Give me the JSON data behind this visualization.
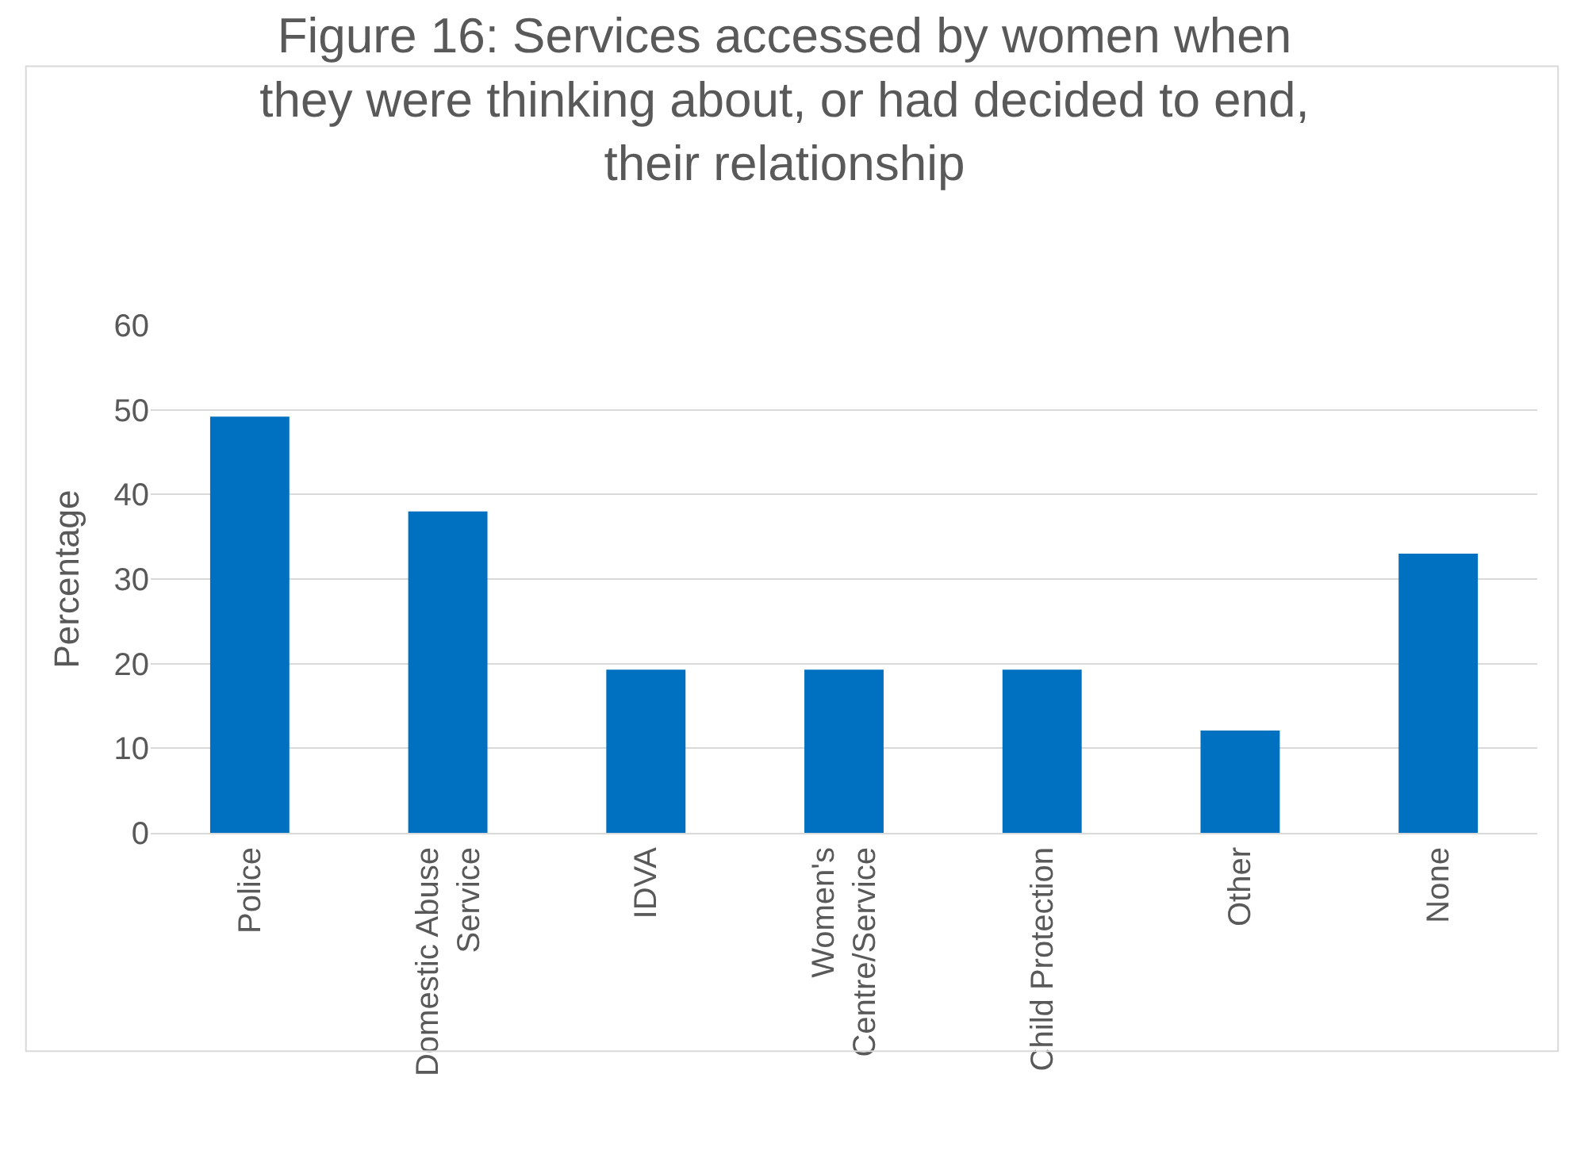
{
  "chart_data": {
    "type": "bar",
    "title": "Figure 16: Services accessed by women when\nthey were thinking about, or had decided to end,\ntheir relationship",
    "ylabel": "Percentage",
    "categories": [
      "Police",
      "Domestic Abuse\nService",
      "IDVA",
      "Women's\nCentre/Service",
      "Child Protection",
      "Other",
      "None"
    ],
    "values": [
      49.2,
      38,
      19.3,
      19.3,
      19.3,
      12.1,
      33
    ],
    "color": "#0070c0",
    "ylim": [
      0,
      60
    ],
    "yticks": [
      0,
      10,
      20,
      30,
      40,
      50,
      60
    ],
    "grid": "y",
    "legend": false
  }
}
